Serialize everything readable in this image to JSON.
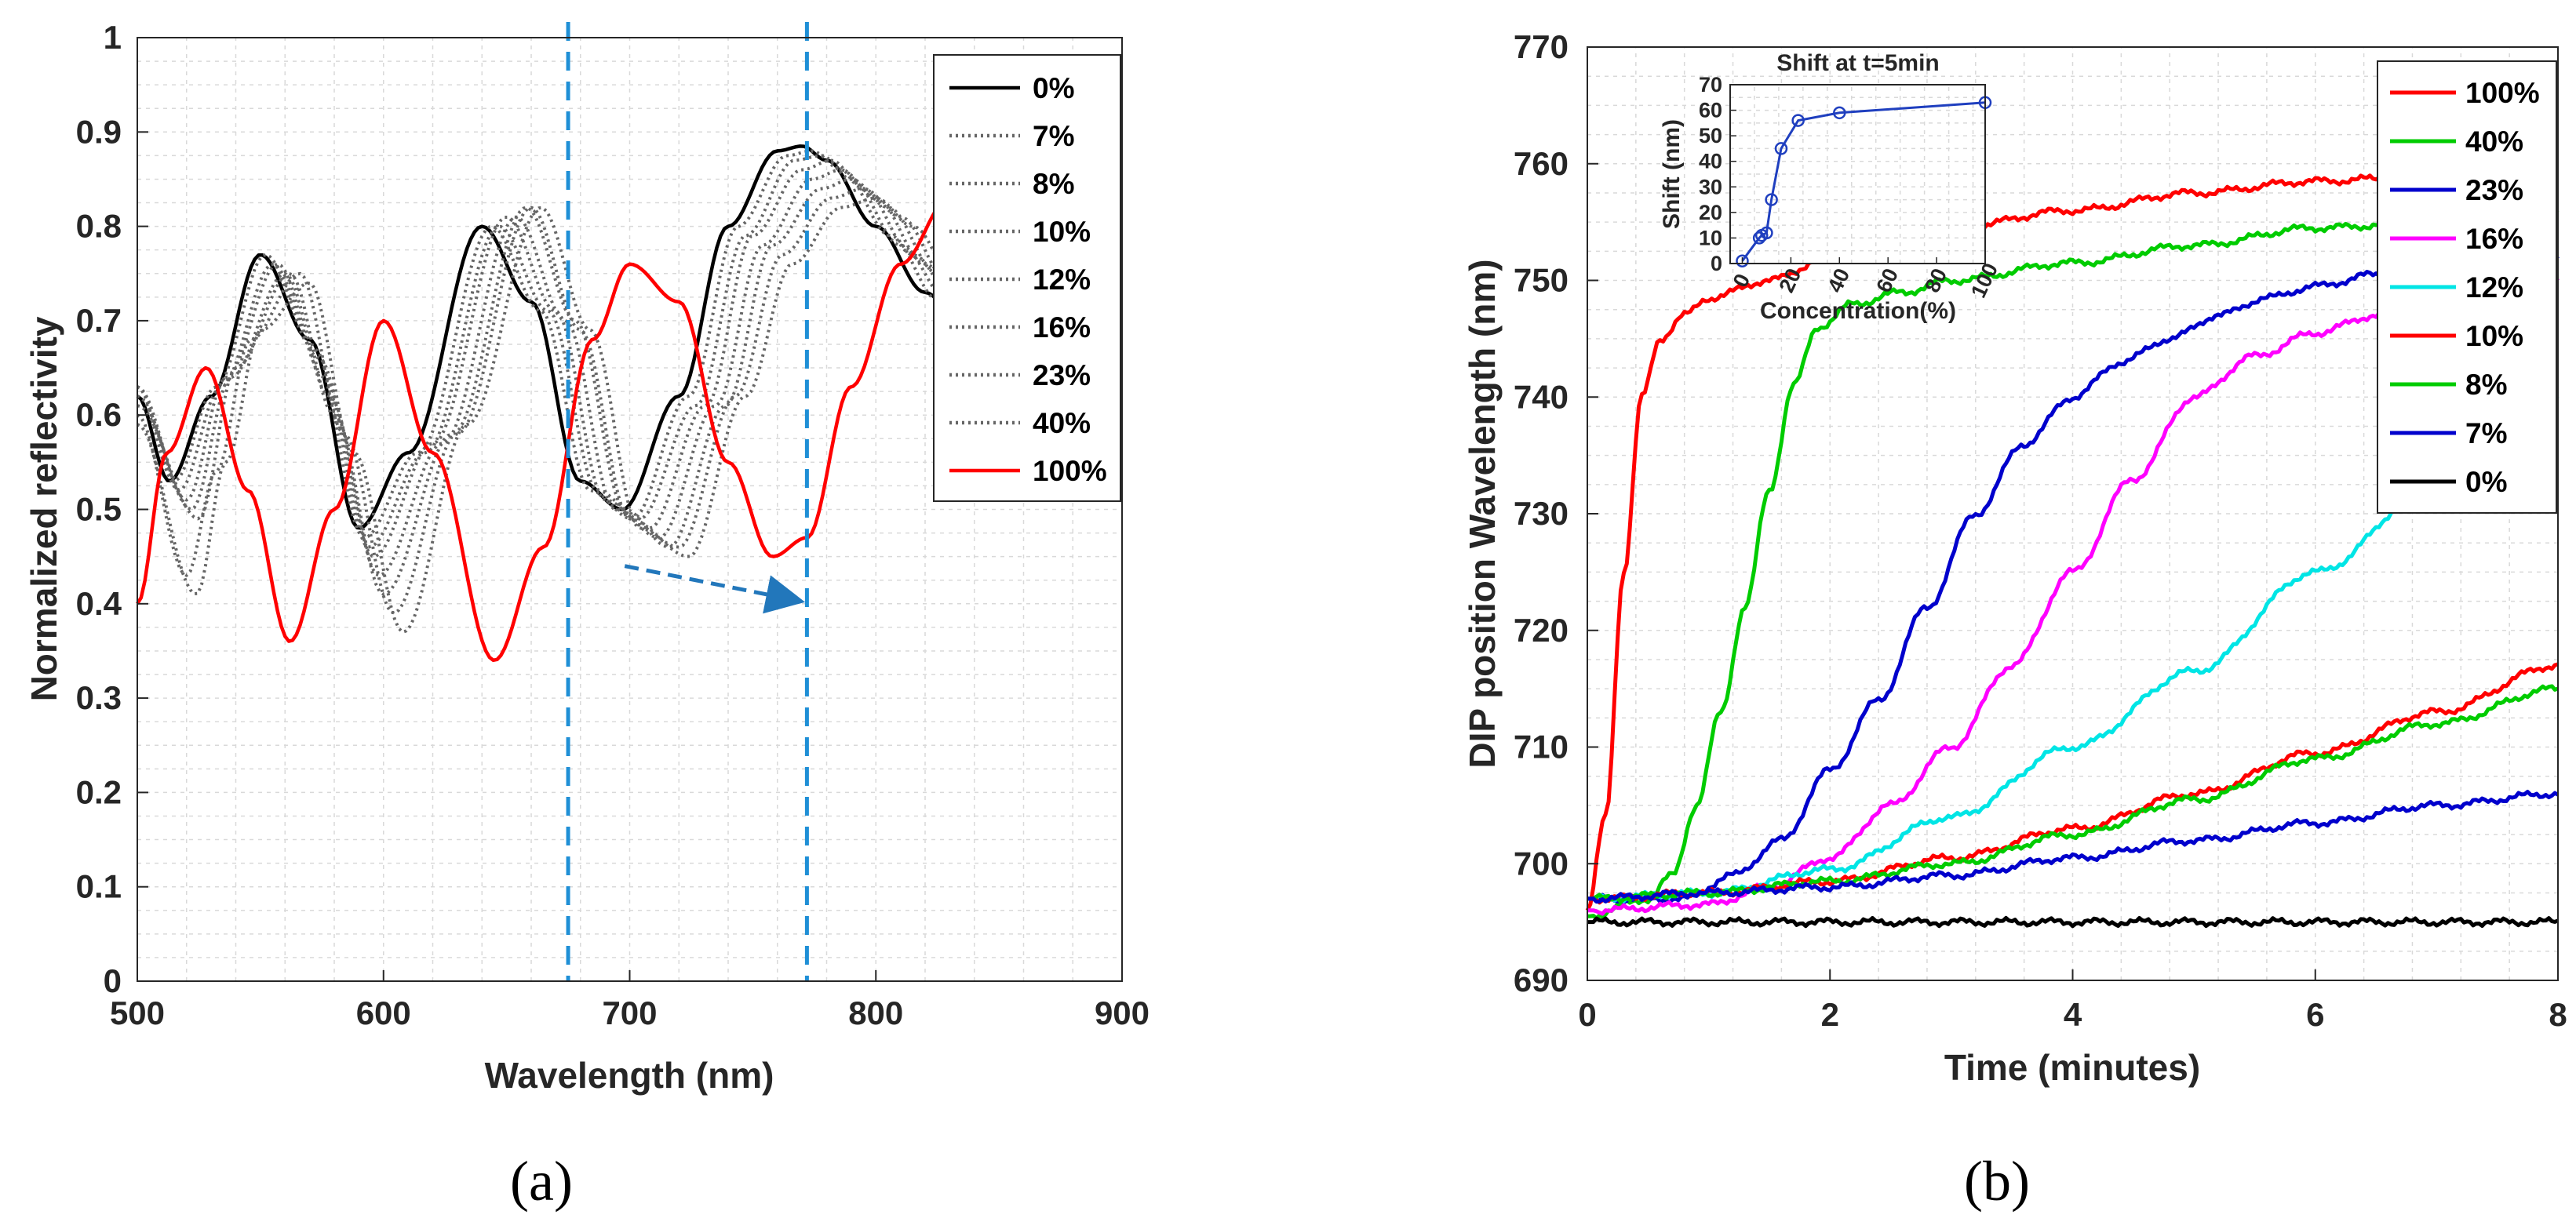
{
  "chart_data": [
    {
      "id": "a",
      "type": "line",
      "caption": "(a)",
      "xlabel": "Wavelength (nm)",
      "ylabel": "Normalized reflectivity",
      "xlim": [
        500,
        900
      ],
      "ylim": [
        0,
        1
      ],
      "xticks": [
        500,
        600,
        700,
        800,
        900
      ],
      "yticks": [
        0,
        0.1,
        0.2,
        0.3,
        0.4,
        0.5,
        0.6,
        0.7,
        0.8,
        0.9,
        1
      ],
      "grid": true,
      "legend": "top-right",
      "vlines": [
        {
          "x": 675,
          "color": "#1f8fd6",
          "style": "dashed"
        },
        {
          "x": 772,
          "color": "#1f8fd6",
          "style": "dashed"
        }
      ],
      "arrow": {
        "from": [
          698,
          0.44
        ],
        "to": [
          765,
          0.405
        ],
        "color": "#2277bb",
        "style": "dashed"
      },
      "series": [
        {
          "name": "0%",
          "color": "#000000",
          "style": "solid",
          "x": [
            500,
            513,
            530,
            550,
            570,
            590,
            610,
            640,
            660,
            680,
            697,
            720,
            740,
            760,
            770,
            780,
            800,
            820,
            840,
            860,
            880,
            895,
            900
          ],
          "y": [
            0.62,
            0.53,
            0.62,
            0.77,
            0.68,
            0.48,
            0.56,
            0.8,
            0.72,
            0.53,
            0.5,
            0.62,
            0.8,
            0.88,
            0.885,
            0.87,
            0.8,
            0.73,
            0.67,
            0.7,
            0.76,
            0.86,
            0.86
          ]
        },
        {
          "name": "7%",
          "color": "#666666",
          "style": "dotted",
          "x": [
            500,
            515,
            532,
            552,
            572,
            592,
            614,
            644,
            664,
            684,
            701,
            724,
            744,
            764,
            774,
            786,
            806,
            826,
            846,
            866,
            886,
            900
          ],
          "y": [
            0.63,
            0.53,
            0.63,
            0.77,
            0.67,
            0.47,
            0.56,
            0.8,
            0.71,
            0.52,
            0.49,
            0.62,
            0.8,
            0.875,
            0.88,
            0.86,
            0.79,
            0.72,
            0.67,
            0.7,
            0.76,
            0.84
          ]
        },
        {
          "name": "8%",
          "color": "#666666",
          "style": "dotted",
          "x": [
            500,
            517,
            534,
            555,
            574,
            594,
            617,
            647,
            667,
            687,
            704,
            727,
            747,
            767,
            778,
            790,
            810,
            830,
            850,
            870,
            890,
            900
          ],
          "y": [
            0.63,
            0.52,
            0.63,
            0.76,
            0.66,
            0.46,
            0.56,
            0.8,
            0.71,
            0.52,
            0.49,
            0.61,
            0.79,
            0.87,
            0.875,
            0.85,
            0.78,
            0.72,
            0.67,
            0.7,
            0.75,
            0.8
          ]
        },
        {
          "name": "10%",
          "color": "#666666",
          "style": "dotted",
          "x": [
            500,
            520,
            536,
            557,
            576,
            596,
            620,
            650,
            670,
            690,
            708,
            731,
            750,
            770,
            782,
            795,
            815,
            835,
            855,
            875,
            895,
            900
          ],
          "y": [
            0.63,
            0.51,
            0.64,
            0.76,
            0.64,
            0.45,
            0.57,
            0.81,
            0.71,
            0.51,
            0.48,
            0.61,
            0.79,
            0.86,
            0.87,
            0.84,
            0.77,
            0.71,
            0.67,
            0.69,
            0.74,
            0.77
          ]
        },
        {
          "name": "12%",
          "color": "#666666",
          "style": "dotted",
          "x": [
            500,
            522,
            538,
            560,
            578,
            598,
            624,
            654,
            674,
            694,
            712,
            735,
            754,
            774,
            786,
            800,
            820,
            840,
            860,
            880,
            900
          ],
          "y": [
            0.62,
            0.5,
            0.64,
            0.75,
            0.62,
            0.43,
            0.57,
            0.81,
            0.7,
            0.5,
            0.47,
            0.61,
            0.78,
            0.85,
            0.86,
            0.83,
            0.76,
            0.7,
            0.67,
            0.69,
            0.74
          ]
        },
        {
          "name": "16%",
          "color": "#666666",
          "style": "dotted",
          "x": [
            500,
            525,
            540,
            562,
            580,
            600,
            628,
            658,
            678,
            698,
            716,
            739,
            758,
            778,
            790,
            805,
            825,
            845,
            865,
            885,
            900
          ],
          "y": [
            0.61,
            0.49,
            0.65,
            0.75,
            0.6,
            0.41,
            0.58,
            0.82,
            0.7,
            0.5,
            0.46,
            0.61,
            0.78,
            0.84,
            0.85,
            0.82,
            0.75,
            0.7,
            0.66,
            0.69,
            0.72
          ]
        },
        {
          "name": "23%",
          "color": "#666666",
          "style": "dotted",
          "x": [
            500,
            520,
            532,
            546,
            566,
            584,
            604,
            630,
            660,
            680,
            700,
            720,
            743,
            762,
            782,
            795,
            810,
            830,
            850,
            870,
            890,
            900
          ],
          "y": [
            0.6,
            0.43,
            0.54,
            0.68,
            0.75,
            0.58,
            0.39,
            0.58,
            0.82,
            0.69,
            0.49,
            0.46,
            0.62,
            0.77,
            0.83,
            0.84,
            0.81,
            0.74,
            0.69,
            0.66,
            0.68,
            0.7
          ]
        },
        {
          "name": "40%",
          "color": "#666666",
          "style": "dotted",
          "x": [
            500,
            524,
            536,
            550,
            570,
            588,
            608,
            634,
            664,
            684,
            704,
            724,
            747,
            766,
            786,
            800,
            815,
            835,
            855,
            875,
            895,
            900
          ],
          "y": [
            0.59,
            0.41,
            0.55,
            0.69,
            0.74,
            0.56,
            0.37,
            0.59,
            0.82,
            0.69,
            0.48,
            0.45,
            0.62,
            0.76,
            0.82,
            0.83,
            0.8,
            0.73,
            0.68,
            0.66,
            0.68,
            0.69
          ]
        },
        {
          "name": "100%",
          "color": "#ff0000",
          "style": "solid",
          "x": [
            500,
            512,
            528,
            545,
            562,
            580,
            600,
            620,
            645,
            665,
            685,
            700,
            720,
            740,
            758,
            772,
            790,
            810,
            830,
            845,
            860,
            880,
            890,
            900
          ],
          "y": [
            0.4,
            0.56,
            0.65,
            0.52,
            0.36,
            0.5,
            0.7,
            0.56,
            0.34,
            0.46,
            0.68,
            0.76,
            0.72,
            0.55,
            0.45,
            0.47,
            0.63,
            0.76,
            0.83,
            0.86,
            0.85,
            0.8,
            0.69,
            0.67
          ]
        }
      ]
    },
    {
      "id": "b",
      "type": "line",
      "caption": "(b)",
      "xlabel": "Time (minutes)",
      "ylabel": "DIP position Wavelength (nm)",
      "xlim": [
        0,
        8
      ],
      "ylim": [
        690,
        770
      ],
      "xticks": [
        0,
        2,
        4,
        6,
        8
      ],
      "yticks": [
        690,
        700,
        710,
        720,
        730,
        740,
        750,
        760,
        770
      ],
      "grid": true,
      "legend": "top-right",
      "series": [
        {
          "name": "100%",
          "color": "#ff0000",
          "x": [
            0,
            0.15,
            0.3,
            0.45,
            0.6,
            0.8,
            1.0,
            1.5,
            2,
            3,
            4,
            5,
            6,
            7,
            8
          ],
          "y": [
            696,
            704,
            725,
            740,
            745,
            747,
            748.5,
            750,
            752,
            754.5,
            756,
            757.5,
            758.5,
            759,
            760
          ]
        },
        {
          "name": "40%",
          "color": "#00cc00",
          "x": [
            0,
            0.5,
            0.7,
            0.9,
            1.1,
            1.3,
            1.5,
            1.7,
            1.9,
            2.2,
            2.6,
            3,
            4,
            5,
            6,
            7,
            8
          ],
          "y": [
            695.5,
            697,
            699,
            705,
            713,
            722,
            732,
            741,
            746,
            748,
            749,
            750,
            751.5,
            753,
            754.5,
            755,
            756
          ]
        },
        {
          "name": "23%",
          "color": "#0000cc",
          "x": [
            0,
            0.8,
            1.2,
            1.6,
            2.0,
            2.4,
            2.8,
            3.2,
            3.6,
            4.0,
            4.4,
            4.8,
            5.2,
            5.6,
            6,
            6.5,
            7,
            8
          ],
          "y": [
            697,
            697,
            699,
            702,
            708,
            714,
            722,
            730,
            736,
            740,
            743,
            745,
            747,
            748.5,
            749.5,
            750.5,
            751,
            752
          ]
        },
        {
          "name": "16%",
          "color": "#ff00ff",
          "x": [
            0,
            1,
            1.5,
            2,
            2.5,
            3,
            3.5,
            4,
            4.5,
            5,
            5.5,
            6,
            6.5,
            7,
            7.5,
            8
          ],
          "y": [
            696,
            696.5,
            698,
            700.5,
            705,
            710,
            717,
            725,
            733,
            740,
            743.5,
            745.5,
            747,
            748.5,
            749.5,
            750
          ]
        },
        {
          "name": "12%",
          "color": "#00e5e5",
          "x": [
            0,
            1,
            2,
            3,
            4,
            5,
            6,
            7,
            8
          ],
          "y": [
            697,
            697.5,
            699.5,
            704,
            710,
            716.5,
            725,
            732.5,
            740
          ]
        },
        {
          "name": "10%",
          "color": "#ff0000",
          "x": [
            0,
            1,
            2,
            3,
            4,
            5,
            6,
            7,
            8
          ],
          "y": [
            697,
            697.5,
            698.5,
            700.5,
            703,
            706,
            709.5,
            713,
            717
          ]
        },
        {
          "name": "8%",
          "color": "#00cc00",
          "x": [
            0,
            1,
            2,
            3,
            4,
            5,
            6,
            7,
            8
          ],
          "y": [
            697,
            697.5,
            698.5,
            700,
            702.5,
            705.5,
            709,
            712,
            715
          ]
        },
        {
          "name": "7%",
          "color": "#0000cc",
          "x": [
            0,
            1,
            2,
            3,
            4,
            5,
            6,
            7,
            8
          ],
          "y": [
            697,
            697.5,
            698,
            699,
            700.5,
            702,
            703.5,
            705,
            706
          ]
        },
        {
          "name": "0%",
          "color": "#000000",
          "x": [
            0,
            1,
            2,
            3,
            4,
            5,
            6,
            7,
            8
          ],
          "y": [
            695,
            695,
            695,
            695,
            695,
            695,
            695,
            695,
            695
          ]
        }
      ]
    },
    {
      "id": "b-inset",
      "type": "line",
      "title": "Shift at t=5min",
      "xlabel": "Concentration(%)",
      "ylabel": "Shift (nm)",
      "xlim": [
        -5,
        100
      ],
      "ylim": [
        0,
        70
      ],
      "xticks": [
        0,
        20,
        40,
        60,
        80,
        100
      ],
      "yticks": [
        0,
        10,
        20,
        30,
        40,
        50,
        60,
        70
      ],
      "grid": true,
      "color": "#1f3fbf",
      "x": [
        0,
        7,
        8,
        10,
        12,
        16,
        23,
        40,
        100
      ],
      "y": [
        1,
        10,
        11,
        12,
        25,
        45,
        56,
        59,
        63
      ]
    }
  ]
}
